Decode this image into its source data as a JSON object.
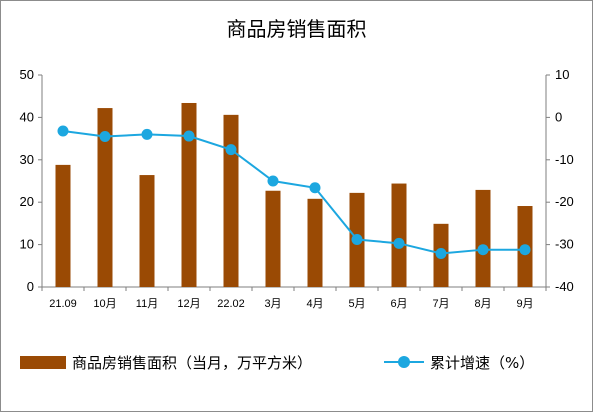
{
  "chart_data": {
    "type": "bar+line",
    "title": "商品房销售面积",
    "categories": [
      "21.09",
      "10月",
      "11月",
      "12月",
      "22.02",
      "3月",
      "4月",
      "5月",
      "6月",
      "7月",
      "8月",
      "9月"
    ],
    "series": [
      {
        "name": "商品房销售面积（当月，万平方米）",
        "type": "bar",
        "axis": "left",
        "values": [
          28.8,
          42.2,
          26.4,
          43.4,
          40.6,
          22.7,
          20.8,
          22.2,
          24.4,
          14.9,
          22.9,
          19.1
        ]
      },
      {
        "name": "累计增速（%）",
        "type": "line",
        "axis": "right",
        "values": [
          -3.2,
          -4.5,
          -4.0,
          -4.4,
          -7.6,
          -15.0,
          -16.6,
          -28.8,
          -29.7,
          -32.1,
          -31.2,
          -31.2
        ]
      }
    ],
    "y_left": {
      "range": [
        0,
        50
      ],
      "ticks": [
        0,
        10,
        20,
        30,
        40,
        50
      ]
    },
    "y_right": {
      "range": [
        -40,
        10
      ],
      "ticks": [
        -40,
        -30,
        -20,
        -10,
        0,
        10
      ]
    },
    "grid": false,
    "legend_position": "bottom",
    "colors": {
      "bar": "#9A4A04",
      "line": "#1CA7E0"
    }
  }
}
